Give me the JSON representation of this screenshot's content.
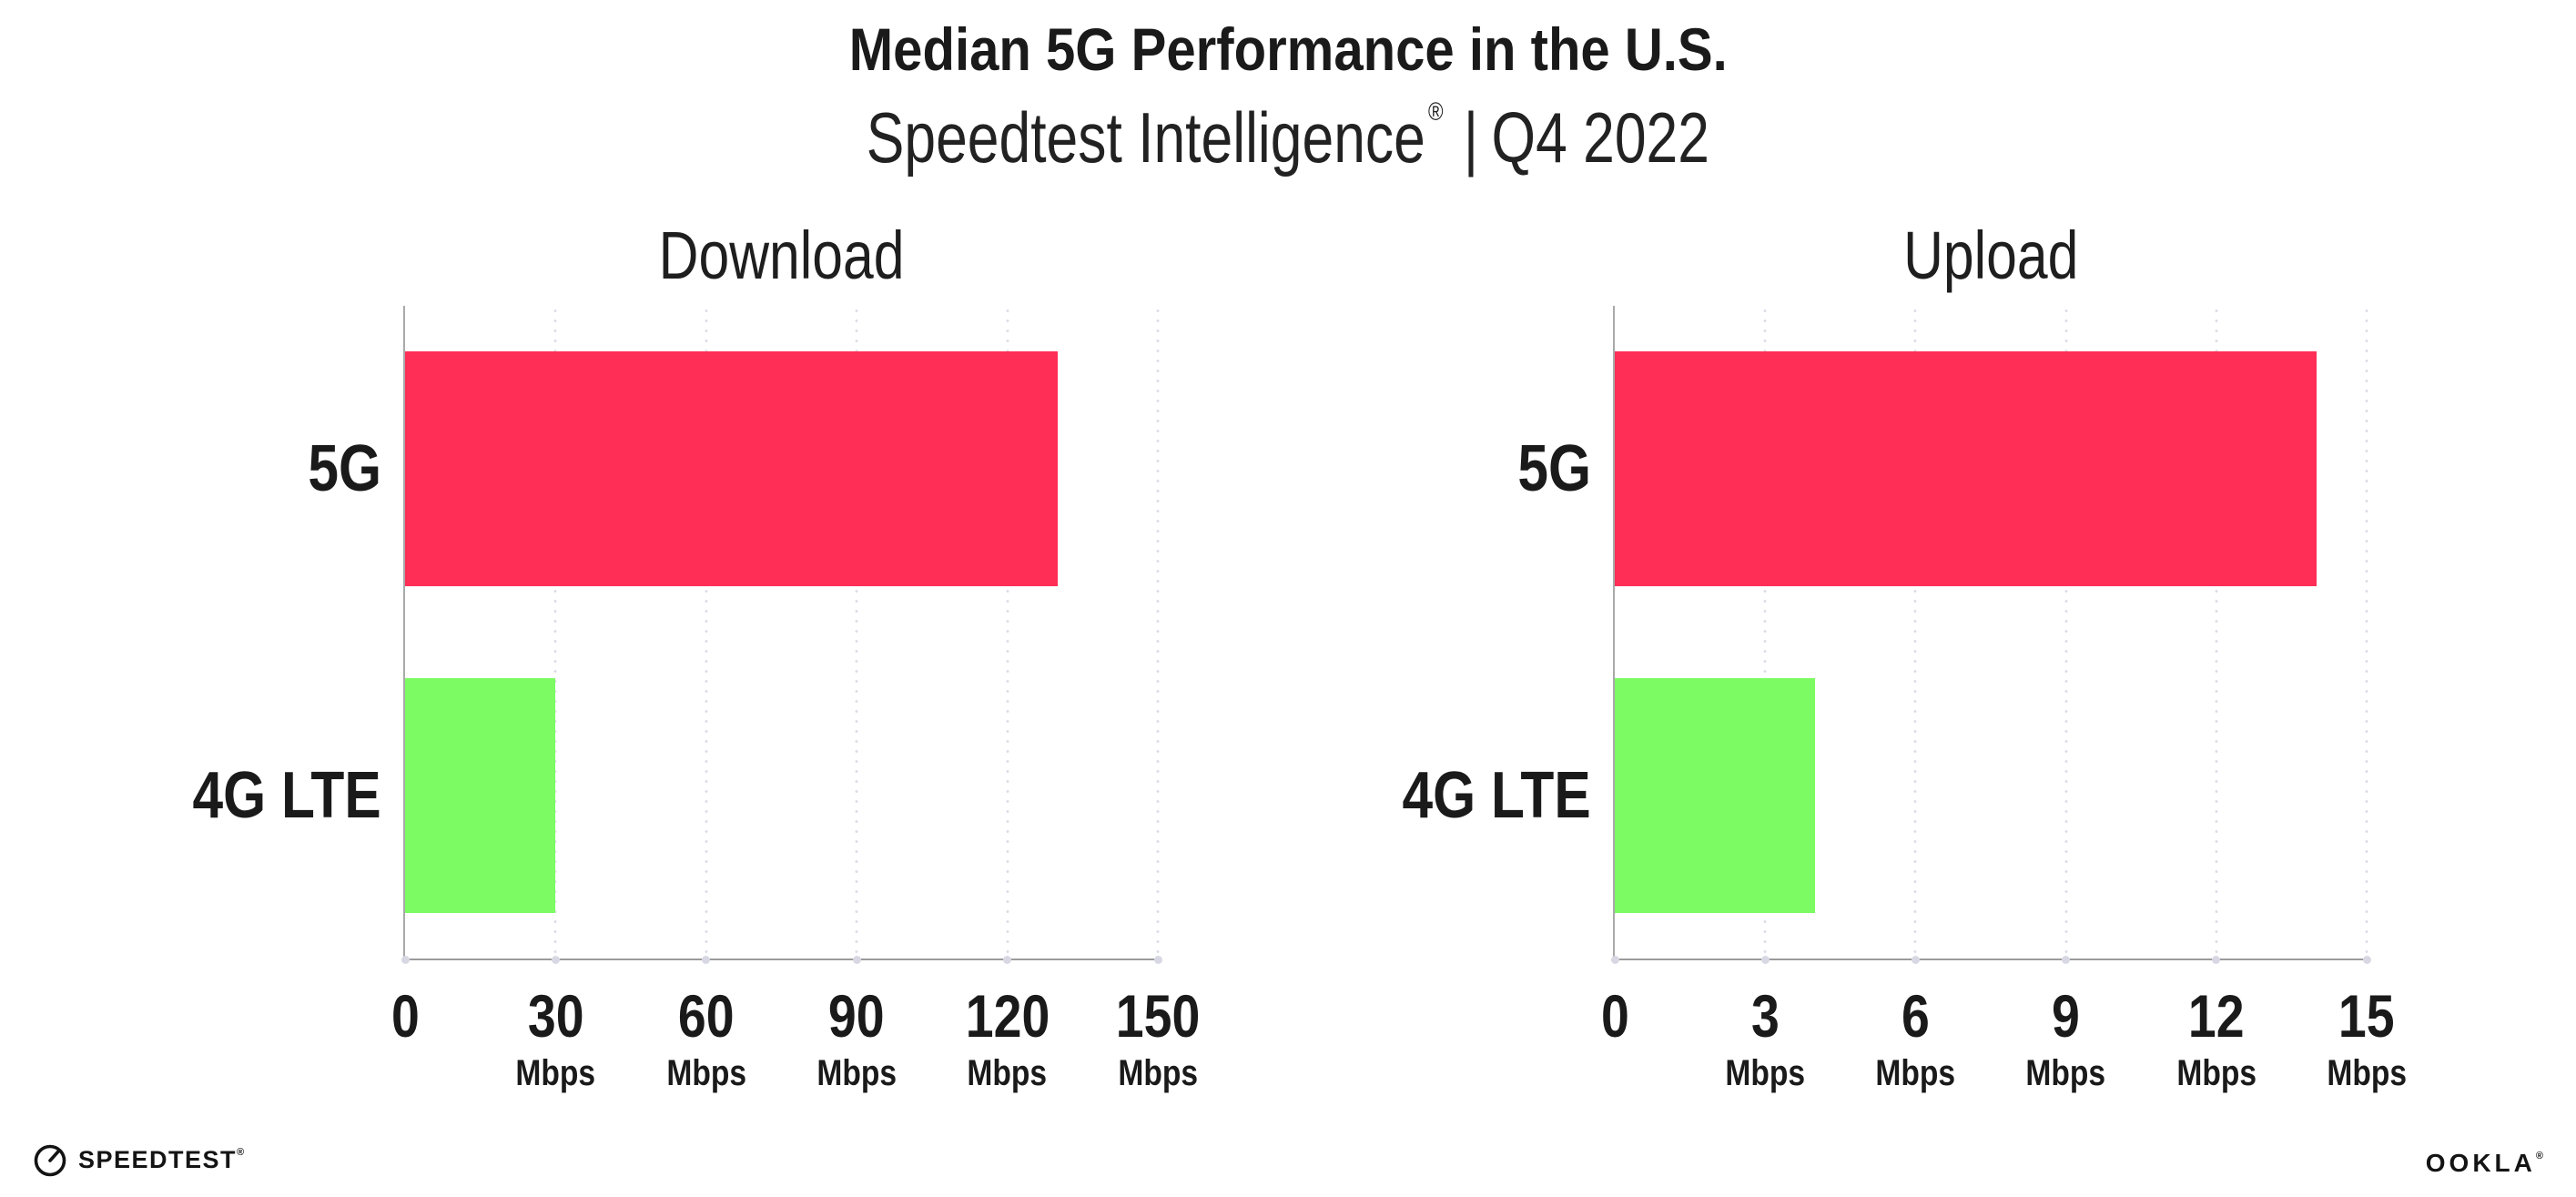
{
  "header": {
    "title": "Median 5G Performance in the U.S.",
    "subtitle": {
      "brand": "Speedtest Intelligence",
      "registered_mark": "®",
      "separator": "|",
      "period": "Q4 2022"
    }
  },
  "chart_data": [
    {
      "type": "bar",
      "orientation": "horizontal",
      "title": "Download",
      "categories": [
        "5G",
        "4G LTE"
      ],
      "values": [
        130,
        30
      ],
      "unit": "Mbps",
      "xlim": [
        0,
        150
      ],
      "ticks": [
        0,
        30,
        60,
        90,
        120,
        150
      ],
      "bar_colors": [
        "#FF2E56",
        "#7CFB62"
      ],
      "grid": "dotted-vertical",
      "legend": "none",
      "value_labels_shown": false
    },
    {
      "type": "bar",
      "orientation": "horizontal",
      "title": "Upload",
      "categories": [
        "5G",
        "4G LTE"
      ],
      "values": [
        14,
        4
      ],
      "unit": "Mbps",
      "xlim": [
        0,
        15
      ],
      "ticks": [
        0,
        3,
        6,
        9,
        12,
        15
      ],
      "bar_colors": [
        "#FF2E56",
        "#7CFB62"
      ],
      "grid": "dotted-vertical",
      "legend": "none",
      "value_labels_shown": false
    }
  ],
  "colors": {
    "bar_5g": "#FF2E56",
    "bar_4g_lte": "#7CFB62",
    "gridline_dots": "#DCDCE8",
    "axis_line": "#A9A9A9",
    "baseline_dot": "#D8D8E4",
    "text": "#1A1A1A",
    "background": "#FFFFFF"
  },
  "footer": {
    "speedtest": {
      "icon": "speedtest-gauge-icon",
      "label": "SPEEDTEST",
      "registered_mark": "®"
    },
    "ookla": {
      "label": "OOKLA",
      "registered_mark": "®"
    }
  }
}
